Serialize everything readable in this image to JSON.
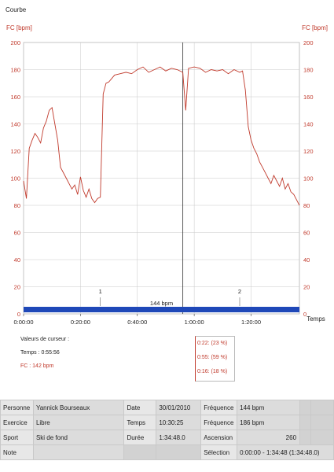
{
  "window": {
    "title": "Courbe"
  },
  "chart_data": {
    "type": "line",
    "ylabel_left": "FC [bpm]",
    "ylabel_right": "FC [bpm]",
    "xlabel": "Temps",
    "y_ticks": [
      "0",
      "20",
      "40",
      "60",
      "80",
      "100",
      "120",
      "140",
      "160",
      "180",
      "200"
    ],
    "x_ticks": [
      "0:00:00",
      "0:20:00",
      "0:40:00",
      "1:00:00",
      "1:20:00"
    ],
    "ylim": [
      0,
      200
    ],
    "xlim_minutes": [
      0,
      97
    ],
    "color": "#c0392b",
    "x_minutes": [
      0,
      1,
      2,
      3,
      4,
      5,
      6,
      7,
      8,
      9,
      10,
      11,
      12,
      13,
      14,
      15,
      16,
      17,
      18,
      19,
      20,
      21,
      22,
      23,
      24,
      25,
      26,
      27,
      28,
      29,
      30,
      32,
      34,
      36,
      38,
      40,
      42,
      44,
      46,
      48,
      50,
      52,
      54,
      56,
      57,
      58,
      60,
      62,
      64,
      66,
      68,
      70,
      72,
      74,
      76,
      77,
      78,
      79,
      80,
      81,
      82,
      83,
      84,
      85,
      86,
      87,
      88,
      89,
      90,
      91,
      92,
      93,
      94,
      95,
      96,
      97
    ],
    "values": [
      98,
      85,
      122,
      128,
      133,
      130,
      126,
      137,
      142,
      150,
      152,
      140,
      128,
      108,
      104,
      100,
      96,
      92,
      95,
      88,
      101,
      91,
      86,
      92,
      85,
      82,
      85,
      86,
      162,
      170,
      171,
      176,
      177,
      178,
      177,
      180,
      182,
      178,
      180,
      182,
      179,
      181,
      180,
      178,
      150,
      181,
      182,
      181,
      178,
      180,
      179,
      180,
      177,
      180,
      178,
      179,
      165,
      138,
      128,
      122,
      118,
      112,
      108,
      104,
      100,
      96,
      102,
      98,
      94,
      100,
      92,
      96,
      90,
      88,
      84,
      80
    ],
    "markers": [
      {
        "label": "1",
        "x_minutes": 27
      },
      {
        "label": "2",
        "x_minutes": 76
      }
    ],
    "average_label": "144 bpm",
    "cursor_x_minutes": 56
  },
  "cursor": {
    "title": "Valeurs de curseur :",
    "time": "Temps : 0:55:56",
    "fc": "FC : 142 bpm"
  },
  "zones": [
    {
      "time": "0:22:",
      "pct": "(23 %)"
    },
    {
      "time": "0:55:",
      "pct": "(59 %)"
    },
    {
      "time": "0:16:",
      "pct": "(18 %)"
    }
  ],
  "info": {
    "rows": [
      {
        "c1": "Personne",
        "c2": "Yannick Bourseaux",
        "c3": "Date",
        "c4": "30/01/2010",
        "c5": "Fréquence",
        "c6": "144 bpm"
      },
      {
        "c1": "Exercice",
        "c2": "Libre",
        "c3": "Temps",
        "c4": "10:30:25",
        "c5": "Fréquence",
        "c6": "186 bpm"
      },
      {
        "c1": "Sport",
        "c2": "Ski de fond",
        "c3": "Durée",
        "c4": "1:34:48.0",
        "c5": "Ascension",
        "c6": "260"
      },
      {
        "c1": "Note",
        "c2": "",
        "c3": "",
        "c4": "",
        "c5": "Sélection",
        "c6": "0:00:00 - 1:34:48 (1:34:48.0)"
      }
    ]
  }
}
